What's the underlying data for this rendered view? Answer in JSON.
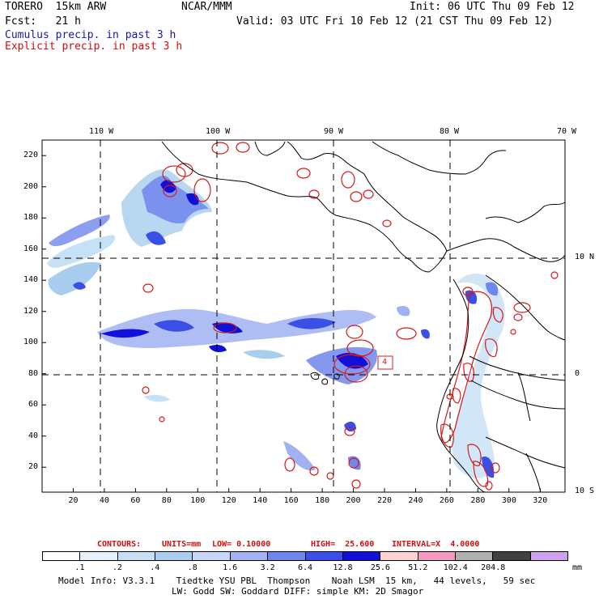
{
  "header": {
    "model": "TORERO  15km ARW",
    "center": "NCAR/MMM",
    "init": "Init: 06 UTC Thu 09 Feb 12",
    "fcst": "Fcst:   21 h",
    "valid": "Valid: 03 UTC Fri 10 Feb 12 (21 CST Thu 09 Feb 12)",
    "cumulus": "Cumulus precip. in past 3 h",
    "explicit": "Explicit precip. in past 3 h"
  },
  "map": {
    "lon_labels": [
      "110 W",
      "100 W",
      "90 W",
      "80 W",
      "70 W"
    ],
    "lat_labels": [
      "10 N",
      "0",
      "10 S"
    ],
    "x_ticks": [
      "20",
      "40",
      "60",
      "80",
      "100",
      "120",
      "140",
      "160",
      "180",
      "200",
      "220",
      "240",
      "260",
      "280",
      "300",
      "320"
    ],
    "y_ticks": [
      "220",
      "200",
      "180",
      "160",
      "140",
      "120",
      "100",
      "80",
      "60",
      "40",
      "20"
    ],
    "marker": "4"
  },
  "contours": {
    "prefix": "CONTOURS:",
    "units": "UNITS=mm",
    "low": "LOW= 0.10000",
    "high": "HIGH=  25.600",
    "interval": "INTERVAL=X  4.0000"
  },
  "colorbar": {
    "labels": [
      ".1",
      ".2",
      ".4",
      ".8",
      "1.6",
      "3.2",
      "6.4",
      "12.8",
      "25.6",
      "51.2",
      "102.4",
      "204.8"
    ],
    "unit": "mm",
    "colors": [
      "#ffffff",
      "#e6f2fb",
      "#c6e0f5",
      "#a8cdee",
      "#c8d6f8",
      "#a0b2f2",
      "#6f86ec",
      "#3a4fe6",
      "#1010d8",
      "#fcd2d2",
      "#f49ac0",
      "#b0b0b0",
      "#404040",
      "#cfa0f0"
    ]
  },
  "footer": {
    "line1": "Model Info: V3.3.1    Tiedtke YSU PBL  Thompson    Noah LSM  15 km,   44 levels,   59 sec",
    "line2": "LW: Godd SW: Goddard DIFF: simple KM: 2D Smagor"
  }
}
